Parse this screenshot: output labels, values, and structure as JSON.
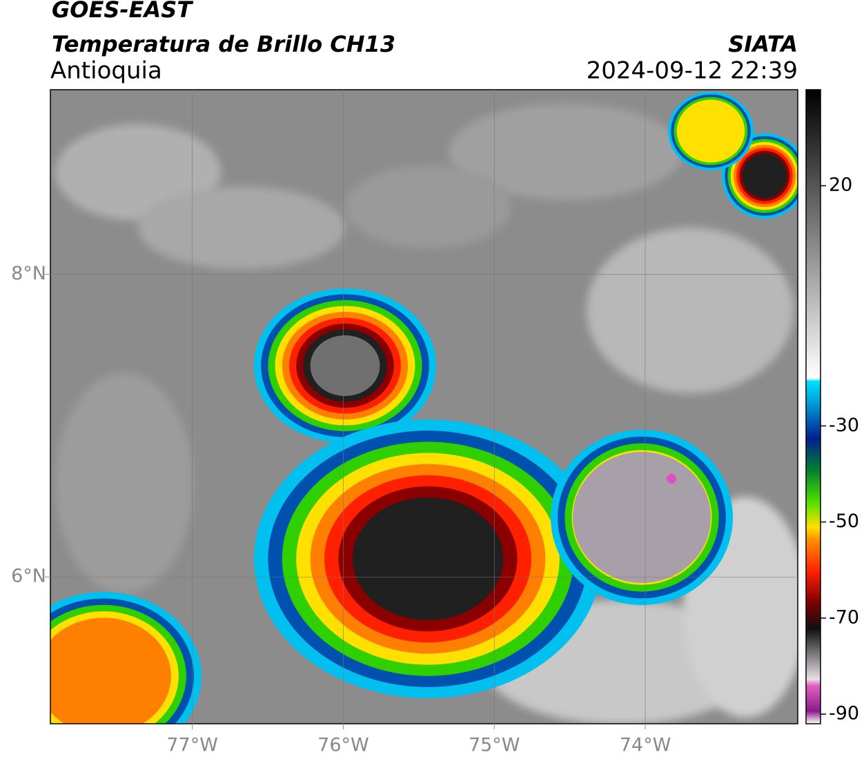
{
  "header": {
    "title": "GOES-EAST",
    "subtitle": "Temperatura de Brillo CH13",
    "region": "Antioquia",
    "source": "SIATA",
    "timestamp": "2024-09-12 22:39"
  },
  "chart_data": {
    "type": "map",
    "xlim": [
      -77.94,
      -72.99
    ],
    "ylim": [
      5.03,
      9.22
    ],
    "xticks": [
      {
        "value": -77,
        "label": "77°W"
      },
      {
        "value": -76,
        "label": "76°W"
      },
      {
        "value": -75,
        "label": "75°W"
      },
      {
        "value": -74,
        "label": "74°W"
      }
    ],
    "yticks": [
      {
        "value": 6,
        "label": "6°N"
      },
      {
        "value": 8,
        "label": "8°N"
      }
    ],
    "grid": true
  },
  "colorbar": {
    "lim": [
      -92,
      40
    ],
    "ticks": [
      20,
      -30,
      -50,
      -70,
      -90
    ]
  }
}
